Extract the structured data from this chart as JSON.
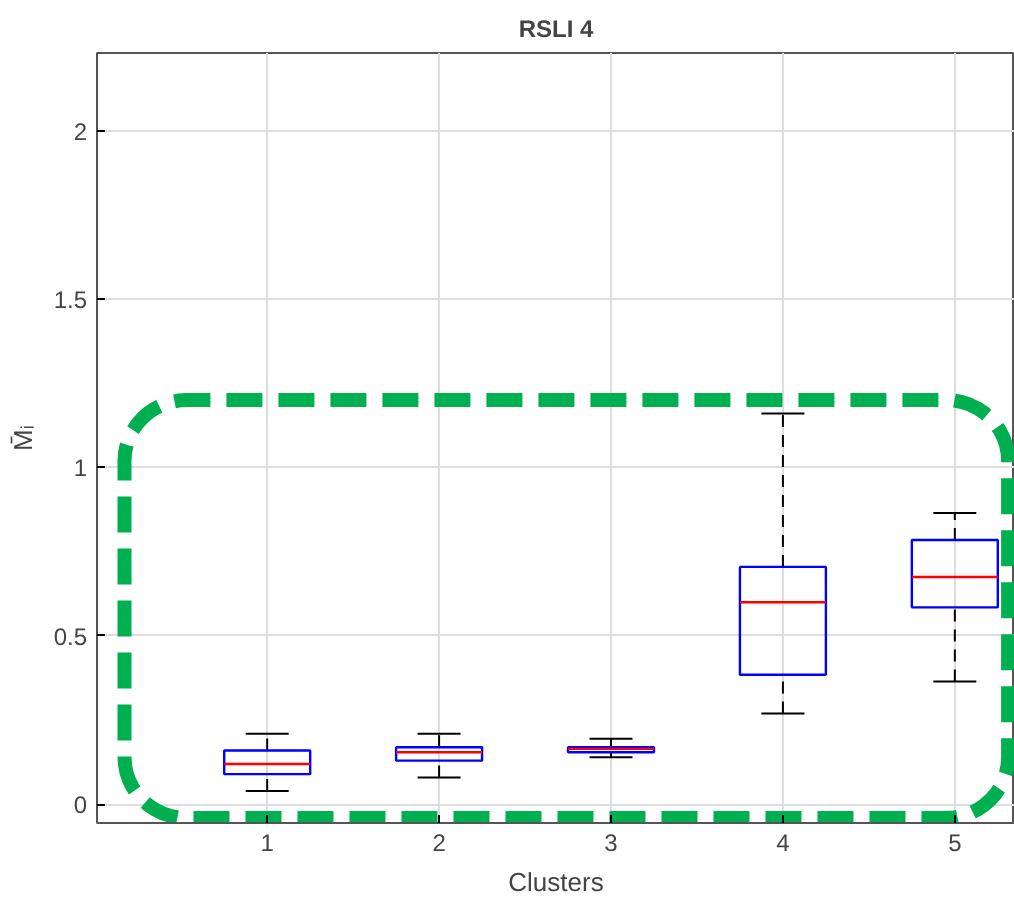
{
  "chart_data": {
    "type": "box",
    "title": "RSLI 4",
    "xlabel": "Clusters",
    "ylabel": "M̄ᵢ",
    "categories": [
      "1",
      "2",
      "3",
      "4",
      "5"
    ],
    "boxes": [
      {
        "low": 0.04,
        "q1": 0.09,
        "median": 0.12,
        "q3": 0.16,
        "high": 0.21
      },
      {
        "low": 0.08,
        "q1": 0.13,
        "median": 0.155,
        "q3": 0.17,
        "high": 0.21
      },
      {
        "low": 0.14,
        "q1": 0.155,
        "median": 0.165,
        "q3": 0.17,
        "high": 0.195
      },
      {
        "low": 0.27,
        "q1": 0.385,
        "median": 0.6,
        "q3": 0.705,
        "high": 1.16
      },
      {
        "low": 0.365,
        "q1": 0.585,
        "median": 0.675,
        "q3": 0.785,
        "high": 0.865
      }
    ],
    "color": "#0000ff",
    "ylim": [
      -0.055,
      2.23
    ],
    "yticks": [
      0,
      0.5,
      1,
      1.5,
      2
    ],
    "grid": true
  }
}
